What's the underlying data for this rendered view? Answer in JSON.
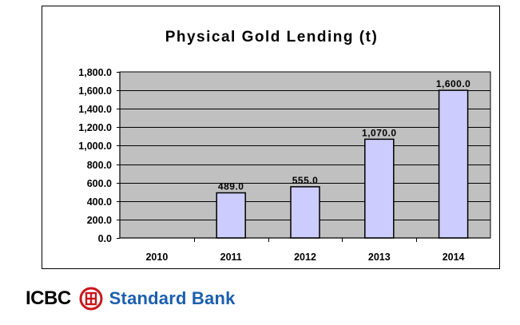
{
  "chart_data": {
    "type": "bar",
    "title": "Physical Gold Lending (t)",
    "categories": [
      "2010",
      "2011",
      "2012",
      "2013",
      "2014"
    ],
    "values": [
      0,
      489.0,
      555.0,
      1070.0,
      1600.0
    ],
    "data_labels": [
      "",
      "489.0",
      "555.0",
      "1,070.0",
      "1,600.0"
    ],
    "ylim": [
      0,
      1800
    ],
    "yticks": [
      0,
      200,
      400,
      600,
      800,
      1000,
      1200,
      1400,
      1600,
      1800
    ],
    "ytick_labels": [
      "0.0",
      "200.0",
      "400.0",
      "600.0",
      "800.0",
      "1,000.0",
      "1,200.0",
      "1,400.0",
      "1,600.0",
      "1,800.0"
    ],
    "xlabel": "",
    "ylabel": "",
    "grid": true,
    "legend": "none",
    "colors": {
      "plot_background": "#c0c0c0",
      "bar_fill": "#ccccff",
      "bar_stroke": "#000000",
      "gridline": "#000000"
    }
  },
  "branding": {
    "icbc_text": "ICBC",
    "icbc_logo_icon": "icbc-seal-icon",
    "partner_text": "Standard Bank",
    "colors": {
      "icbc_red": "#c8161d",
      "standard_bank_blue": "#1b5fae"
    }
  }
}
